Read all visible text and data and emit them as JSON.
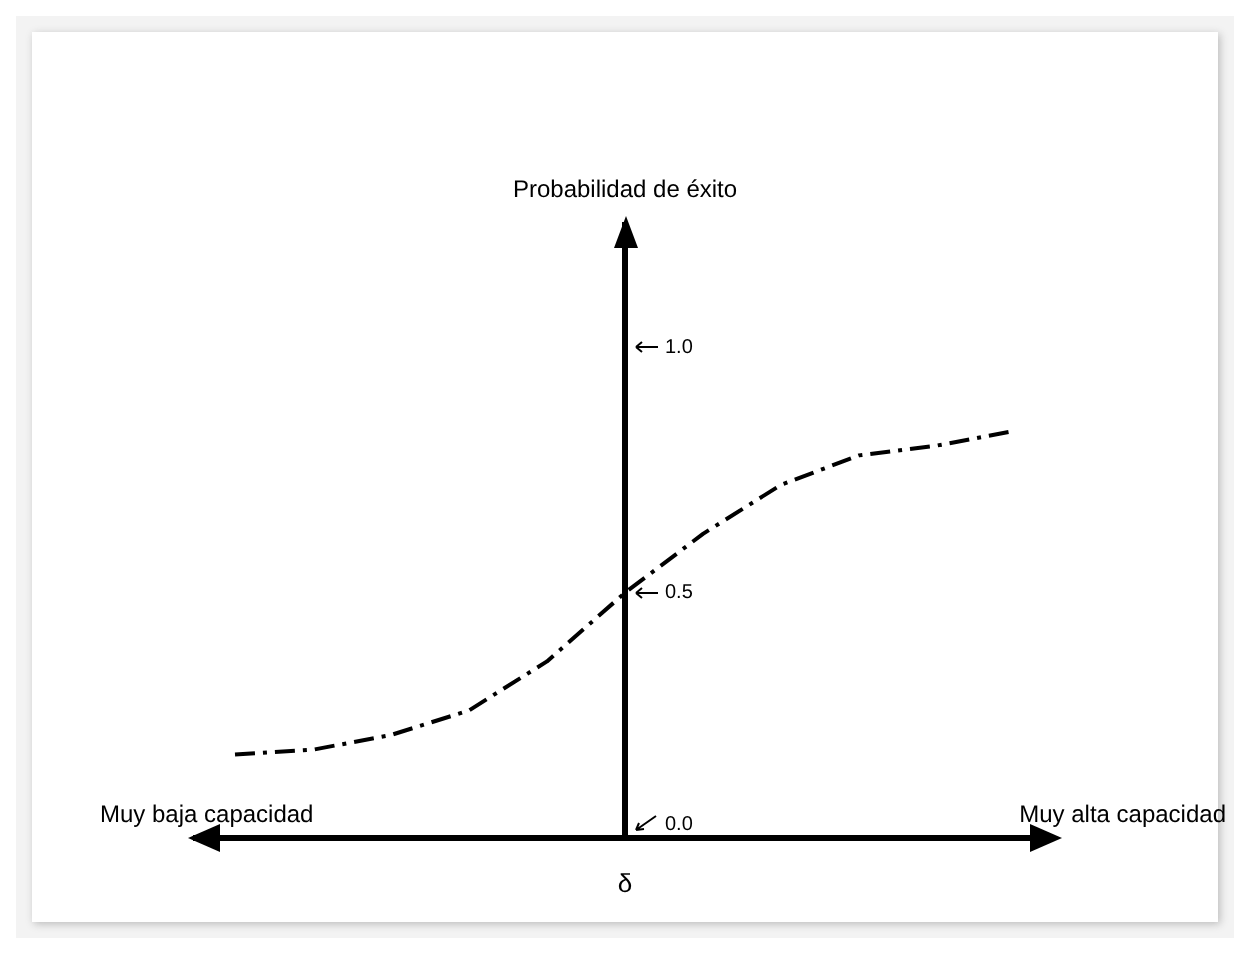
{
  "chart_data": {
    "type": "line",
    "ylabel": "Probabilidad de éxito",
    "xlabel": "δ",
    "categories": [
      null,
      null,
      null,
      null,
      null,
      null,
      null,
      null,
      null,
      null,
      null
    ],
    "series": [
      {
        "color": "#000000",
        "values": [
          0.17,
          0.18,
          0.21,
          0.26,
          0.36,
          0.5,
          0.62,
          0.72,
          0.78,
          0.8,
          0.83
        ]
      }
    ],
    "ylim": [
      0,
      1.25
    ],
    "yticks": [
      {
        "value": 0,
        "label": "0.0"
      },
      {
        "value": 0.5,
        "label": "0.5"
      },
      {
        "value": 1,
        "label": "1.0"
      }
    ],
    "grid": false,
    "legend": false,
    "marker": "none",
    "line_style": "dashed",
    "annotations": [
      "Muy baja capacidad",
      "Muy alta capacidad"
    ]
  }
}
